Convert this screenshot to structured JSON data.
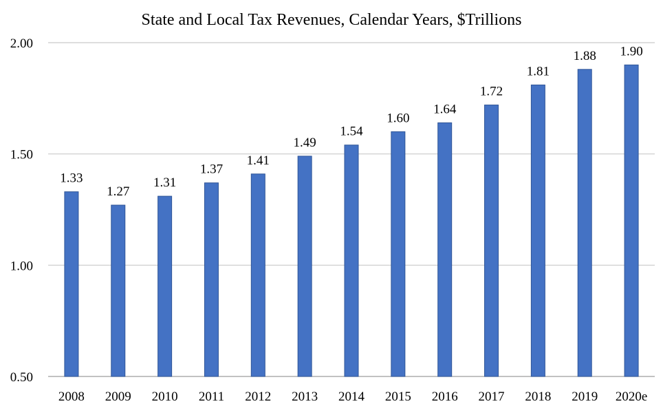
{
  "chart_data": {
    "type": "bar",
    "title": "State and Local Tax Revenues, Calendar Years, $Trillions",
    "categories": [
      "2008",
      "2009",
      "2010",
      "2011",
      "2012",
      "2013",
      "2014",
      "2015",
      "2016",
      "2017",
      "2018",
      "2019",
      "2020e"
    ],
    "values": [
      1.33,
      1.27,
      1.31,
      1.37,
      1.41,
      1.49,
      1.54,
      1.6,
      1.64,
      1.72,
      1.81,
      1.88,
      1.9
    ],
    "data_labels": [
      "1.33",
      "1.27",
      "1.31",
      "1.37",
      "1.41",
      "1.49",
      "1.54",
      "1.60",
      "1.64",
      "1.72",
      "1.81",
      "1.88",
      "1.90"
    ],
    "yticks": [
      "0.50",
      "1.00",
      "1.50",
      "2.00"
    ],
    "ytick_values": [
      0.5,
      1.0,
      1.5,
      2.0
    ],
    "ylim": [
      0.5,
      2.0
    ],
    "xlabel": "",
    "ylabel": "",
    "grid": "horizontal",
    "legend": "none",
    "bar_color": "#4472c4",
    "bar_edge_color": "#2f5597"
  }
}
